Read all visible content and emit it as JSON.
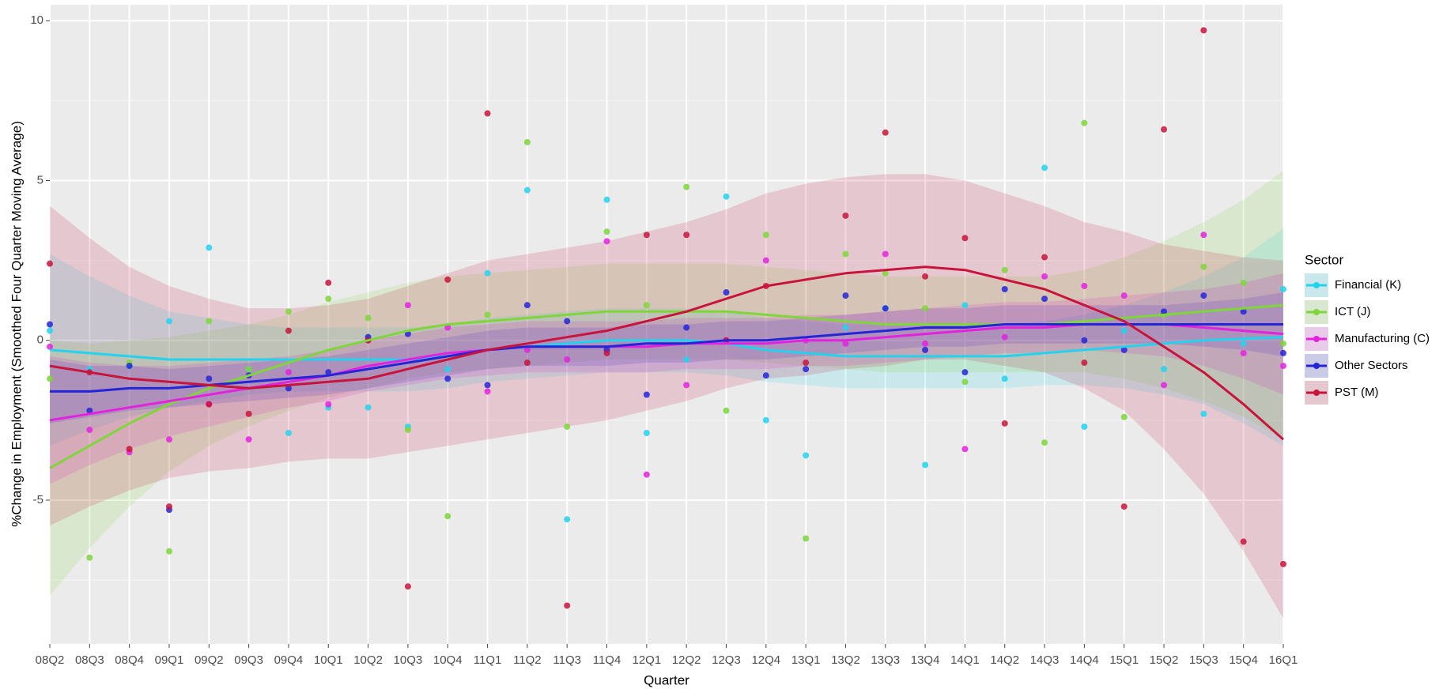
{
  "chart_data": {
    "type": "scatter-smooth",
    "x_label": "Quarter",
    "y_label": "%Change in Employment (Smoothed Four Quarter Moving Average)",
    "legend_title": "Sector",
    "legend_position": "right",
    "grid": true,
    "categories": [
      "08Q2",
      "08Q3",
      "08Q4",
      "09Q1",
      "09Q2",
      "09Q3",
      "09Q4",
      "10Q1",
      "10Q2",
      "10Q3",
      "10Q4",
      "11Q1",
      "11Q2",
      "11Q3",
      "11Q4",
      "12Q1",
      "12Q2",
      "12Q3",
      "12Q4",
      "13Q1",
      "13Q2",
      "13Q3",
      "13Q4",
      "14Q1",
      "14Q2",
      "14Q3",
      "14Q4",
      "15Q1",
      "15Q2",
      "15Q3",
      "15Q4",
      "16Q1"
    ],
    "ylim": [
      -9.5,
      10.5
    ],
    "yticks": [
      -5,
      0,
      5,
      10
    ],
    "series": [
      {
        "name": "Financial (K)",
        "color": "#22d3ee",
        "values": [
          0.3,
          -0.9,
          -0.8,
          0.6,
          2.9,
          -0.9,
          -2.9,
          -2.1,
          -2.1,
          -2.7,
          -0.9,
          2.1,
          4.7,
          -5.6,
          4.4,
          -2.9,
          -0.6,
          4.5,
          -2.5,
          -3.6,
          0.4,
          1.0,
          -3.9,
          1.1,
          -1.2,
          5.4,
          -2.7,
          0.3,
          -0.9,
          -2.3,
          -0.1,
          1.6
        ],
        "smooth": [
          -0.3,
          -0.4,
          -0.5,
          -0.6,
          -0.6,
          -0.6,
          -0.6,
          -0.6,
          -0.6,
          -0.6,
          -0.5,
          -0.3,
          -0.2,
          -0.1,
          0,
          0,
          0,
          -0.1,
          -0.3,
          -0.4,
          -0.5,
          -0.5,
          -0.5,
          -0.5,
          -0.5,
          -0.4,
          -0.3,
          -0.2,
          -0.1,
          0,
          0.05,
          0.1
        ],
        "lower": [
          -3.3,
          -2.8,
          -2.4,
          -2.1,
          -1.9,
          -1.7,
          -1.6,
          -1.6,
          -1.6,
          -1.6,
          -1.5,
          -1.3,
          -1.2,
          -1.1,
          -1,
          -1,
          -1,
          -1.1,
          -1.3,
          -1.4,
          -1.5,
          -1.5,
          -1.5,
          -1.5,
          -1.5,
          -1.4,
          -1.4,
          -1.5,
          -1.7,
          -2,
          -2.6,
          -3.3
        ],
        "upper": [
          2.7,
          2,
          1.4,
          0.9,
          0.7,
          0.5,
          0.4,
          0.4,
          0.4,
          0.4,
          0.5,
          0.7,
          0.8,
          0.9,
          1,
          1,
          1,
          0.9,
          0.7,
          0.6,
          0.5,
          0.5,
          0.5,
          0.5,
          0.5,
          0.6,
          0.8,
          1.1,
          1.5,
          2,
          2.6,
          3.5
        ]
      },
      {
        "name": "ICT (J)",
        "color": "#7ed63a",
        "values": [
          -1.2,
          -6.8,
          -0.7,
          -6.6,
          0.6,
          -0.9,
          0.9,
          1.3,
          0.7,
          -2.8,
          -5.5,
          0.8,
          6.2,
          -2.7,
          3.4,
          1.1,
          4.8,
          -2.2,
          3.3,
          -6.2,
          2.7,
          2.1,
          1.0,
          -1.3,
          2.2,
          -3.2,
          6.8,
          -2.4,
          0.8,
          2.3,
          1.8,
          -0.1
        ],
        "smooth": [
          -4,
          -3.3,
          -2.6,
          -2,
          -1.5,
          -1.1,
          -0.7,
          -0.3,
          0,
          0.3,
          0.5,
          0.6,
          0.7,
          0.8,
          0.9,
          0.9,
          0.9,
          0.9,
          0.8,
          0.7,
          0.6,
          0.5,
          0.5,
          0.5,
          0.5,
          0.5,
          0.6,
          0.7,
          0.8,
          0.9,
          1,
          1.1
        ],
        "lower": [
          -8,
          -6.5,
          -5.2,
          -4.1,
          -3.3,
          -2.7,
          -2.2,
          -1.8,
          -1.5,
          -1.2,
          -1,
          -0.9,
          -0.8,
          -0.7,
          -0.6,
          -0.6,
          -0.6,
          -0.6,
          -0.7,
          -0.8,
          -0.9,
          -1,
          -1,
          -1,
          -1,
          -1,
          -1,
          -1.2,
          -1.5,
          -1.9,
          -2.4,
          -3.1
        ],
        "upper": [
          0,
          -0.1,
          0,
          0.1,
          0.3,
          0.5,
          0.8,
          1.2,
          1.5,
          1.8,
          2,
          2.1,
          2.2,
          2.3,
          2.4,
          2.4,
          2.4,
          2.4,
          2.3,
          2.2,
          2.1,
          2,
          2,
          2,
          2,
          2,
          2.2,
          2.6,
          3.1,
          3.7,
          4.4,
          5.3
        ]
      },
      {
        "name": "Manufacturing (C)",
        "color": "#e322e0",
        "values": [
          -0.2,
          -2.8,
          -3.5,
          -3.1,
          -2.0,
          -3.1,
          -1.0,
          -2.0,
          0.0,
          1.1,
          0.4,
          -1.6,
          -0.3,
          -0.6,
          3.1,
          -4.2,
          -1.4,
          0.0,
          2.5,
          0.0,
          -0.1,
          2.7,
          -0.1,
          -3.4,
          0.1,
          2.0,
          1.7,
          1.4,
          -1.4,
          3.3,
          -0.4,
          -0.8
        ],
        "smooth": [
          -2.5,
          -2.3,
          -2.1,
          -1.9,
          -1.7,
          -1.5,
          -1.3,
          -1.1,
          -0.8,
          -0.6,
          -0.4,
          -0.3,
          -0.2,
          -0.2,
          -0.2,
          -0.2,
          -0.1,
          -0.1,
          -0.1,
          0,
          0,
          0.1,
          0.2,
          0.3,
          0.4,
          0.4,
          0.5,
          0.5,
          0.5,
          0.4,
          0.3,
          0.2
        ],
        "lower": [
          -4.5,
          -3.9,
          -3.4,
          -3,
          -2.7,
          -2.4,
          -2.1,
          -1.9,
          -1.6,
          -1.4,
          -1.2,
          -1.1,
          -1,
          -1,
          -1,
          -1,
          -0.9,
          -0.9,
          -0.9,
          -0.8,
          -0.8,
          -0.7,
          -0.6,
          -0.5,
          -0.4,
          -0.4,
          -0.3,
          -0.4,
          -0.5,
          -0.8,
          -1.2,
          -1.7
        ],
        "upper": [
          -0.5,
          -0.7,
          -0.8,
          -0.8,
          -0.7,
          -0.6,
          -0.5,
          -0.3,
          0,
          0.2,
          0.4,
          0.5,
          0.6,
          0.6,
          0.6,
          0.6,
          0.7,
          0.7,
          0.7,
          0.8,
          0.8,
          0.9,
          1,
          1.1,
          1.2,
          1.2,
          1.3,
          1.4,
          1.5,
          1.6,
          1.8,
          2.1
        ]
      },
      {
        "name": "Other Sectors",
        "color": "#2525d8",
        "values": [
          0.5,
          -2.2,
          -0.8,
          -5.3,
          -1.2,
          -1.1,
          -1.5,
          -1.0,
          0.1,
          0.2,
          -1.2,
          -1.4,
          1.1,
          0.6,
          -0.3,
          -1.7,
          0.4,
          1.5,
          -1.1,
          -0.9,
          1.4,
          1.0,
          -0.3,
          -1.0,
          1.6,
          1.3,
          0.0,
          -0.3,
          0.9,
          1.4,
          0.9,
          -0.4
        ],
        "smooth": [
          -1.6,
          -1.6,
          -1.5,
          -1.5,
          -1.4,
          -1.3,
          -1.2,
          -1.1,
          -0.9,
          -0.7,
          -0.5,
          -0.3,
          -0.2,
          -0.2,
          -0.2,
          -0.1,
          -0.1,
          0,
          0,
          0.1,
          0.2,
          0.3,
          0.4,
          0.4,
          0.5,
          0.5,
          0.5,
          0.5,
          0.5,
          0.5,
          0.5,
          0.5
        ],
        "lower": [
          -2.6,
          -2.4,
          -2.2,
          -2.1,
          -2,
          -1.9,
          -1.8,
          -1.7,
          -1.5,
          -1.3,
          -1.1,
          -0.9,
          -0.8,
          -0.8,
          -0.8,
          -0.7,
          -0.7,
          -0.6,
          -0.6,
          -0.5,
          -0.4,
          -0.3,
          -0.2,
          -0.2,
          -0.1,
          -0.1,
          -0.1,
          -0.1,
          -0.1,
          -0.2,
          -0.3,
          -0.5
        ],
        "upper": [
          -0.6,
          -0.8,
          -0.8,
          -0.9,
          -0.8,
          -0.7,
          -0.6,
          -0.5,
          -0.3,
          -0.1,
          0.1,
          0.3,
          0.4,
          0.4,
          0.4,
          0.5,
          0.5,
          0.6,
          0.6,
          0.7,
          0.8,
          0.9,
          1,
          1,
          1.1,
          1.1,
          1.1,
          1.1,
          1.1,
          1.2,
          1.3,
          1.5
        ]
      },
      {
        "name": "PST (M)",
        "color": "#c8143c",
        "values": [
          2.4,
          -1.0,
          -3.4,
          -5.2,
          -2.0,
          -2.3,
          0.3,
          1.8,
          0.0,
          -7.7,
          1.9,
          7.1,
          -0.7,
          -8.3,
          -0.4,
          3.3,
          3.3,
          0.0,
          1.7,
          -0.7,
          3.9,
          6.5,
          2.0,
          3.2,
          -2.6,
          2.6,
          -0.7,
          -5.2,
          6.6,
          9.7,
          -6.3,
          -7.0
        ],
        "smooth": [
          -0.8,
          -1,
          -1.2,
          -1.3,
          -1.4,
          -1.5,
          -1.4,
          -1.3,
          -1.2,
          -0.9,
          -0.6,
          -0.3,
          -0.1,
          0.1,
          0.3,
          0.6,
          0.9,
          1.3,
          1.7,
          1.9,
          2.1,
          2.2,
          2.3,
          2.2,
          1.9,
          1.6,
          1.1,
          0.6,
          -0.2,
          -1,
          -2,
          -3.1
        ],
        "lower": [
          -5.8,
          -5.2,
          -4.7,
          -4.3,
          -4.1,
          -4,
          -3.8,
          -3.7,
          -3.7,
          -3.5,
          -3.3,
          -3.1,
          -2.9,
          -2.7,
          -2.5,
          -2.2,
          -1.9,
          -1.5,
          -1.2,
          -1.1,
          -0.9,
          -0.8,
          -0.6,
          -0.6,
          -0.8,
          -1,
          -1.5,
          -2.2,
          -3.4,
          -4.8,
          -6.6,
          -8.7
        ],
        "upper": [
          4.2,
          3.2,
          2.3,
          1.7,
          1.3,
          1,
          1,
          1.1,
          1.3,
          1.7,
          2.1,
          2.5,
          2.7,
          2.9,
          3.1,
          3.4,
          3.7,
          4.1,
          4.6,
          4.9,
          5.1,
          5.2,
          5.2,
          5,
          4.6,
          4.2,
          3.7,
          3.4,
          3,
          2.8,
          2.6,
          2.5
        ]
      }
    ]
  }
}
